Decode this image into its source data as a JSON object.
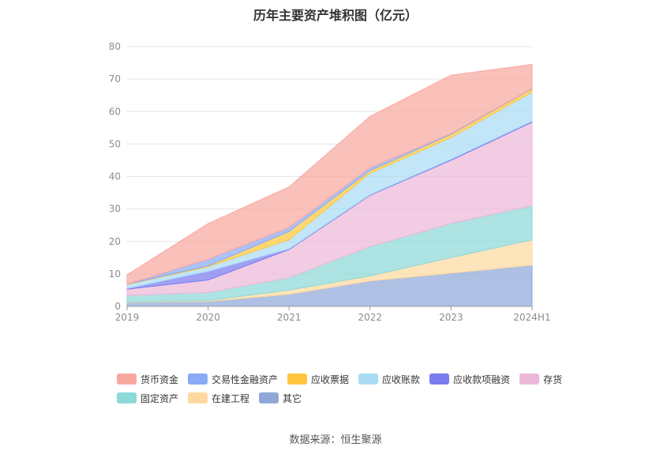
{
  "chart_data": {
    "type": "area",
    "title": "历年主要资产堆积图（亿元）",
    "xlabel": "",
    "ylabel": "",
    "x": [
      "2019",
      "2020",
      "2021",
      "2022",
      "2023",
      "2024H1"
    ],
    "ylim": [
      0,
      80
    ],
    "yticks": [
      0,
      10,
      20,
      30,
      40,
      50,
      60,
      70,
      80
    ],
    "stacked": true,
    "grid": true,
    "legend_position": "bottom",
    "series": [
      {
        "name": "其它",
        "color": "#8fa8d8",
        "values": [
          1.2,
          1.5,
          3.7,
          7.8,
          10.2,
          12.7
        ]
      },
      {
        "name": "在建工程",
        "color": "#fdd9a0",
        "values": [
          0.1,
          0.3,
          1.3,
          1.6,
          4.8,
          7.8
        ]
      },
      {
        "name": "固定资产",
        "color": "#8dd8d8",
        "values": [
          2.0,
          2.5,
          3.8,
          9.0,
          10.5,
          10.5
        ]
      },
      {
        "name": "存货",
        "color": "#ebb8d8",
        "values": [
          2.0,
          3.8,
          8.7,
          15.8,
          19.5,
          25.7
        ]
      },
      {
        "name": "应收款项融资",
        "color": "#7a7cf0",
        "values": [
          0.2,
          2.7,
          0.2,
          0.2,
          0.3,
          0.3
        ]
      },
      {
        "name": "应收账款",
        "color": "#aadcf5",
        "values": [
          1.2,
          1.4,
          2.8,
          6.6,
          6.7,
          9.0
        ]
      },
      {
        "name": "应收票据",
        "color": "#fec73e",
        "values": [
          0.1,
          0.3,
          2.6,
          0.8,
          1.0,
          1.0
        ]
      },
      {
        "name": "交易性金融资产",
        "color": "#8aaaf5",
        "values": [
          0.0,
          2.0,
          1.2,
          0.9,
          0.2,
          0.1
        ]
      },
      {
        "name": "货币资金",
        "color": "#f8a8a0",
        "values": [
          2.9,
          11.0,
          12.5,
          15.8,
          18.0,
          7.4
        ]
      }
    ]
  },
  "legend_items": [
    {
      "label": "货币资金",
      "color": "#f8a8a0"
    },
    {
      "label": "交易性金融资产",
      "color": "#8aaaf5"
    },
    {
      "label": "应收票据",
      "color": "#fec73e"
    },
    {
      "label": "应收账款",
      "color": "#aadcf5"
    },
    {
      "label": "应收款项融资",
      "color": "#7a7cf0"
    },
    {
      "label": "存货",
      "color": "#ebb8d8"
    },
    {
      "label": "固定资产",
      "color": "#8dd8d8"
    },
    {
      "label": "在建工程",
      "color": "#fdd9a0"
    },
    {
      "label": "其它",
      "color": "#8fa8d8"
    }
  ],
  "source": "数据来源：恒生聚源"
}
